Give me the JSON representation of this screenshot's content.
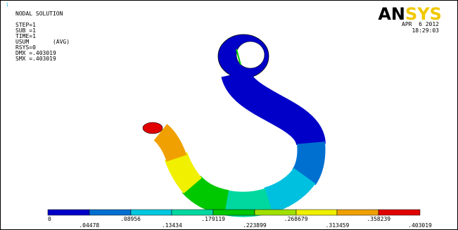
{
  "window_number": "1",
  "info": {
    "title": "NODAL SOLUTION",
    "lines": [
      "STEP=1",
      "SUB =1",
      "TIME=1",
      "USUM       (AVG)",
      "RSYS=0",
      "DMX =.403019",
      "SMX =.403019"
    ]
  },
  "logo": {
    "left": "AN",
    "right": "SYS"
  },
  "date": "APR  6 2012",
  "time": "18:29:03",
  "legend": {
    "labels": [
      "0",
      ".04478",
      ".08956",
      ".13434",
      ".179119",
      ".223899",
      ".268679",
      ".313459",
      ".358239",
      ".403019"
    ]
  }
}
